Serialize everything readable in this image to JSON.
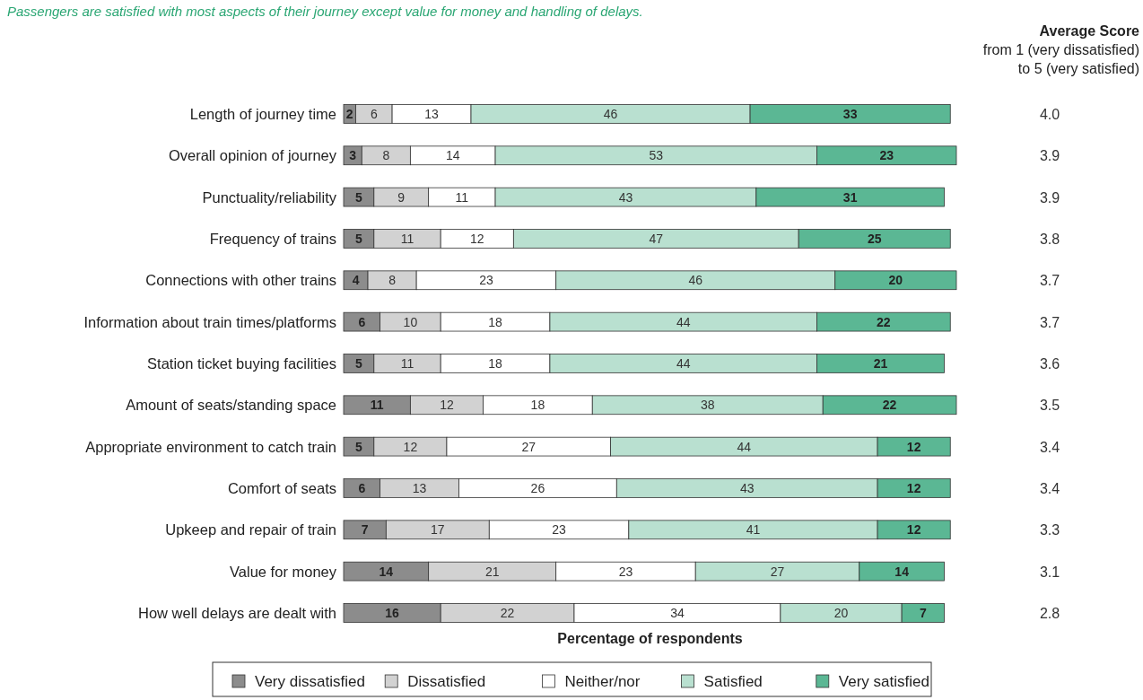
{
  "chart_data": {
    "type": "bar",
    "orientation": "horizontal",
    "stacked": true,
    "data_labels": true,
    "title": "Passengers are satisfied with most aspects of their journey except value for money and handling of delays.",
    "xlabel": "Percentage of respondents",
    "xlim": [
      0,
      101
    ],
    "tick_labels": "y",
    "legend": "bottom",
    "categories": [
      "Length of journey time",
      "Overall opinion of journey",
      "Punctuality/reliability",
      "Frequency of trains",
      "Connections with other trains",
      "Information about train times/platforms",
      "Station ticket buying facilities",
      "Amount of seats/standing space",
      "Appropriate environment to catch train",
      "Comfort of seats",
      "Upkeep and repair of train",
      "Value for money",
      "How well delays are dealt with"
    ],
    "series": [
      {
        "name": "Very dissatisfied",
        "color": "#8c8c8c",
        "values": [
          2,
          3,
          5,
          5,
          4,
          6,
          5,
          11,
          5,
          6,
          7,
          14,
          16
        ]
      },
      {
        "name": "Dissatisfied",
        "color": "#d2d2d2",
        "values": [
          6,
          8,
          9,
          11,
          8,
          10,
          11,
          12,
          12,
          13,
          17,
          21,
          22
        ]
      },
      {
        "name": "Neither/nor",
        "color": "#ffffff",
        "values": [
          13,
          14,
          11,
          12,
          23,
          18,
          18,
          18,
          27,
          26,
          23,
          23,
          34
        ]
      },
      {
        "name": "Satisfied",
        "color": "#b9e0d0",
        "values": [
          46,
          53,
          43,
          47,
          46,
          44,
          44,
          38,
          44,
          43,
          41,
          27,
          20
        ]
      },
      {
        "name": "Very satisfied",
        "color": "#5bb794",
        "values": [
          33,
          23,
          31,
          25,
          20,
          22,
          21,
          22,
          12,
          12,
          12,
          14,
          7
        ]
      }
    ],
    "annotations": [
      "Average Score",
      "from 1 (very dissatisfied)",
      "to 5 (very satisfied)",
      "4.0",
      "3.9",
      "3.9",
      "3.8",
      "3.7",
      "3.7",
      "3.6",
      "3.5",
      "3.4",
      "3.4",
      "3.3",
      "3.1",
      "2.8"
    ]
  }
}
